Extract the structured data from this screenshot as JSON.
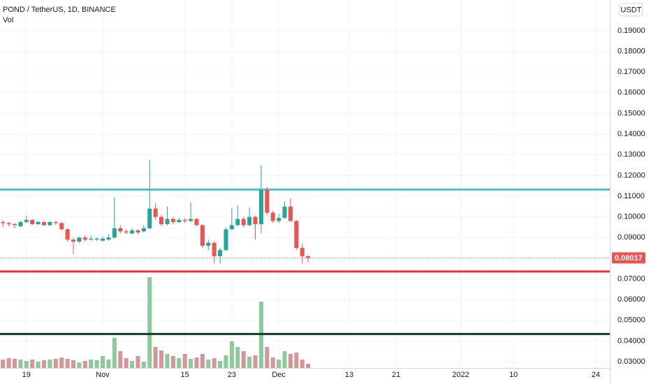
{
  "chart_data": {
    "type": "candlestick",
    "title": "POND / TetherUS, 1D, BINANCE",
    "volume_label": "Vol",
    "currency": "USDT",
    "up_color": "#26a69a",
    "down_color": "#ef5350",
    "volume_up_color": "#8cc99b",
    "volume_down_color": "#d59795",
    "grid": true,
    "x": [
      -4,
      -3,
      -2,
      -1,
      0,
      1,
      2,
      3,
      4,
      5,
      6,
      7,
      8,
      9,
      10,
      11,
      12,
      13,
      14,
      15,
      16,
      17,
      18,
      19,
      20,
      21,
      22,
      23,
      24,
      25,
      26,
      27,
      28,
      29,
      30,
      31,
      32,
      33,
      34,
      35,
      36,
      37,
      38,
      39,
      40,
      41,
      42,
      43,
      44,
      45,
      46,
      47,
      48
    ],
    "open": [
      0.0975,
      0.097,
      0.0965,
      0.0955,
      0.0975,
      0.0985,
      0.0965,
      0.0975,
      0.096,
      0.0975,
      0.097,
      0.094,
      0.089,
      0.088,
      0.09,
      0.089,
      0.089,
      0.0885,
      0.089,
      0.09,
      0.0945,
      0.093,
      0.092,
      0.0935,
      0.093,
      0.0945,
      0.104,
      0.1,
      0.0965,
      0.099,
      0.0975,
      0.0985,
      0.098,
      0.099,
      0.096,
      0.086,
      0.0875,
      0.081,
      0.084,
      0.094,
      0.096,
      0.099,
      0.096,
      0.1,
      0.0965,
      0.113,
      0.102,
      0.098,
      0.0995,
      0.105,
      0.098,
      0.085,
      0.081
    ],
    "close": [
      0.097,
      0.0965,
      0.096,
      0.0975,
      0.0985,
      0.0965,
      0.0975,
      0.096,
      0.0975,
      0.097,
      0.094,
      0.089,
      0.088,
      0.09,
      0.089,
      0.0895,
      0.0895,
      0.0895,
      0.09,
      0.0945,
      0.093,
      0.0925,
      0.0935,
      0.0925,
      0.0945,
      0.104,
      0.1,
      0.0965,
      0.099,
      0.0975,
      0.0985,
      0.098,
      0.099,
      0.096,
      0.086,
      0.0875,
      0.081,
      0.084,
      0.094,
      0.096,
      0.099,
      0.096,
      0.1,
      0.0965,
      0.113,
      0.102,
      0.098,
      0.0995,
      0.105,
      0.098,
      0.085,
      0.081,
      0.08017
    ],
    "high": [
      0.0985,
      0.0975,
      0.097,
      0.098,
      0.1005,
      0.099,
      0.098,
      0.098,
      0.098,
      0.098,
      0.0975,
      0.0945,
      0.09,
      0.0905,
      0.091,
      0.091,
      0.09,
      0.0905,
      0.0915,
      0.1095,
      0.096,
      0.094,
      0.0945,
      0.094,
      0.096,
      0.1275,
      0.1065,
      0.101,
      0.105,
      0.1,
      0.0995,
      0.0995,
      0.107,
      0.0995,
      0.0965,
      0.089,
      0.088,
      0.085,
      0.095,
      0.104,
      0.1055,
      0.1,
      0.1045,
      0.1005,
      0.125,
      0.1145,
      0.103,
      0.1015,
      0.1075,
      0.109,
      0.0985,
      0.087,
      0.0815
    ],
    "low": [
      0.095,
      0.0955,
      0.0945,
      0.095,
      0.097,
      0.096,
      0.096,
      0.0955,
      0.0955,
      0.096,
      0.0935,
      0.088,
      0.082,
      0.0875,
      0.088,
      0.0885,
      0.0885,
      0.088,
      0.0885,
      0.0895,
      0.092,
      0.0915,
      0.0915,
      0.0915,
      0.0925,
      0.094,
      0.0985,
      0.0955,
      0.096,
      0.0965,
      0.097,
      0.097,
      0.0975,
      0.0955,
      0.085,
      0.084,
      0.0775,
      0.0775,
      0.0835,
      0.0935,
      0.0955,
      0.095,
      0.0955,
      0.089,
      0.092,
      0.101,
      0.097,
      0.097,
      0.099,
      0.0975,
      0.084,
      0.0775,
      0.078
    ],
    "volume": [
      12,
      14,
      13,
      12,
      10,
      12,
      9,
      11,
      12,
      13,
      15,
      13,
      11,
      8,
      10,
      12,
      11,
      17,
      12,
      43,
      24,
      14,
      10,
      17,
      9,
      130,
      30,
      25,
      20,
      17,
      14,
      20,
      13,
      15,
      20,
      12,
      14,
      10,
      18,
      38,
      30,
      24,
      16,
      18,
      95,
      30,
      15,
      12,
      24,
      20,
      22,
      12,
      6
    ],
    "volume_ylim": [
      0,
      150
    ],
    "xlim": [
      -4.5,
      99.4
    ],
    "xticks": [
      {
        "value": 0,
        "label": "19"
      },
      {
        "value": 13,
        "label": "Nov"
      },
      {
        "value": 27,
        "label": "15"
      },
      {
        "value": 35,
        "label": "23"
      },
      {
        "value": 43,
        "label": "Dec"
      },
      {
        "value": 55,
        "label": "13"
      },
      {
        "value": 63,
        "label": "21"
      },
      {
        "value": 74,
        "label": "2022"
      },
      {
        "value": 83,
        "label": "10"
      },
      {
        "value": 97,
        "label": "24"
      }
    ],
    "ylim": [
      0.027,
      0.2048
    ],
    "yticks": [
      {
        "value": 0.03,
        "label": "0.03000"
      },
      {
        "value": 0.04,
        "label": "0.04000"
      },
      {
        "value": 0.05,
        "label": "0.05000"
      },
      {
        "value": 0.06,
        "label": "0.06000"
      },
      {
        "value": 0.07,
        "label": "0.07000"
      },
      {
        "value": 0.08,
        "label": "0.08000"
      },
      {
        "value": 0.09,
        "label": "0.09000"
      },
      {
        "value": 0.1,
        "label": "0.10000"
      },
      {
        "value": 0.11,
        "label": "0.11000"
      },
      {
        "value": 0.12,
        "label": "0.12000"
      },
      {
        "value": 0.13,
        "label": "0.13000"
      },
      {
        "value": 0.14,
        "label": "0.14000"
      },
      {
        "value": 0.15,
        "label": "0.15000"
      },
      {
        "value": 0.16,
        "label": "0.16000"
      },
      {
        "value": 0.17,
        "label": "0.17000"
      },
      {
        "value": 0.18,
        "label": "0.18000"
      },
      {
        "value": 0.19,
        "label": "0.19000"
      }
    ],
    "last_price": {
      "value": 0.08017,
      "label": "0.08017"
    },
    "hlines": [
      {
        "value": 0.1132,
        "color": "#4fc3d7"
      },
      {
        "value": 0.0736,
        "color": "#f0302a"
      },
      {
        "value": 0.0434,
        "color": "#0d3b33"
      }
    ]
  }
}
